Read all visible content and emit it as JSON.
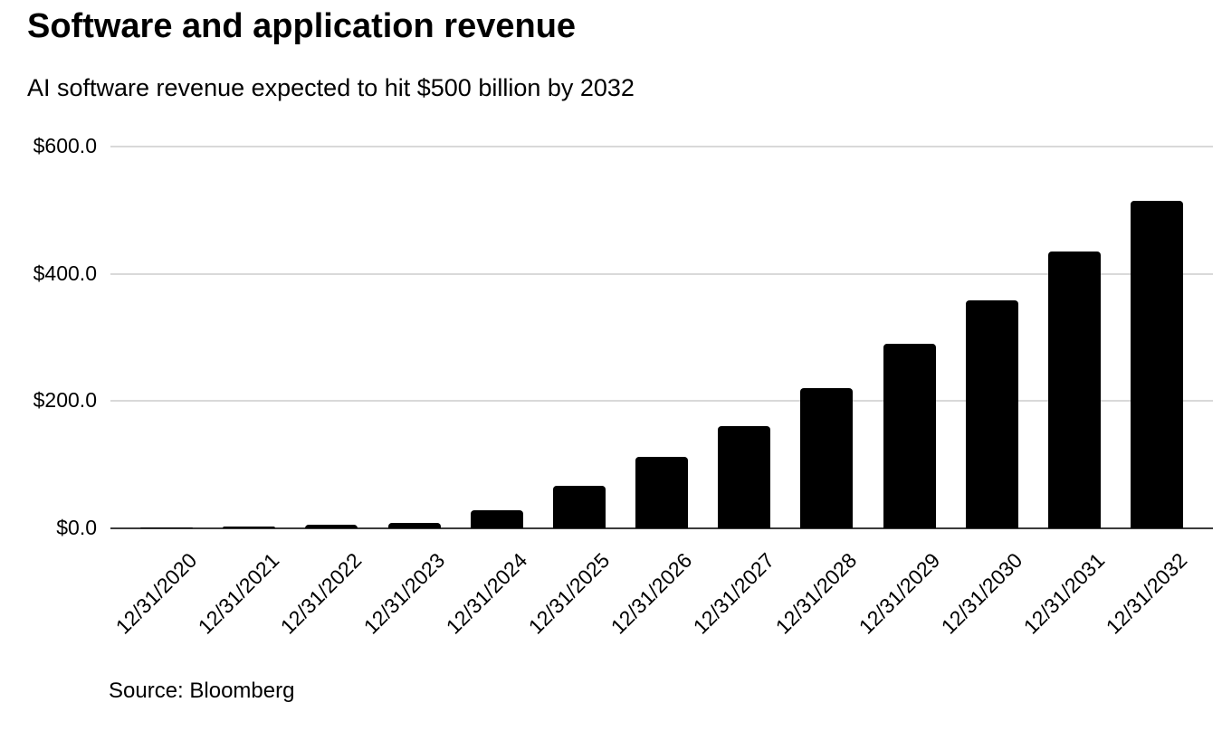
{
  "header": {
    "title": "Software and application revenue",
    "subtitle": "AI software revenue expected to hit $500 billion by 2032"
  },
  "footer": {
    "source": "Source: Bloomberg"
  },
  "colors": {
    "bar": "#000000",
    "gridline": "#d9d9d9",
    "axis_line": "#3c3c3c",
    "text": "#000000",
    "background": "#ffffff"
  },
  "chart_data": {
    "type": "bar",
    "title": "Software and application revenue",
    "subtitle": "AI software revenue expected to hit $500 billion by 2032",
    "unit": "USD billions",
    "categories": [
      "12/31/2020",
      "12/31/2021",
      "12/31/2022",
      "12/31/2023",
      "12/31/2024",
      "12/31/2025",
      "12/31/2026",
      "12/31/2027",
      "12/31/2028",
      "12/31/2029",
      "12/31/2030",
      "12/31/2031",
      "12/31/2032"
    ],
    "values": [
      2,
      3,
      6,
      8,
      28,
      67,
      113,
      161,
      220,
      290,
      358,
      435,
      514
    ],
    "xlabel": "",
    "ylabel": "",
    "ylim": [
      0,
      600
    ],
    "yticks": [
      {
        "value": 0,
        "label": "$0.0"
      },
      {
        "value": 200,
        "label": "$200.0"
      },
      {
        "value": 400,
        "label": "$400.0"
      },
      {
        "value": 600,
        "label": "$600.0"
      }
    ],
    "grid": true,
    "legend": false,
    "bar_color": "#000000",
    "source": "Source: Bloomberg"
  }
}
